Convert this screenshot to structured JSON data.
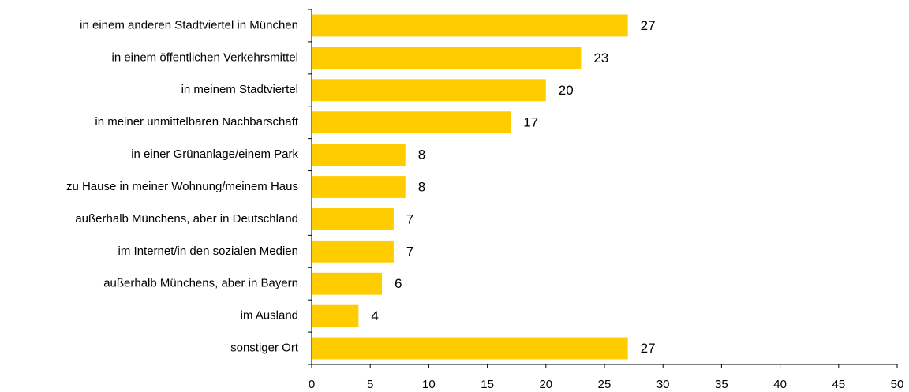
{
  "chart_data": {
    "type": "bar",
    "orientation": "horizontal",
    "categories": [
      "in einem anderen Stadtviertel in München",
      "in einem öffentlichen Verkehrsmittel",
      "in meinem Stadtviertel",
      "in meiner unmittelbaren Nachbarschaft",
      "in einer Grünanlage/einem Park",
      "zu Hause in meiner Wohnung/meinem Haus",
      "außerhalb Münchens, aber in Deutschland",
      "im Internet/in den sozialen Medien",
      "außerhalb Münchens, aber in Bayern",
      "im Ausland",
      "sonstiger Ort"
    ],
    "values": [
      27,
      23,
      20,
      17,
      8,
      8,
      7,
      7,
      6,
      4,
      27
    ],
    "color": "#ffcc00",
    "xlim": [
      0,
      50
    ],
    "xticks": [
      0,
      5,
      10,
      15,
      20,
      25,
      30,
      35,
      40,
      45,
      50
    ],
    "grid": false
  }
}
